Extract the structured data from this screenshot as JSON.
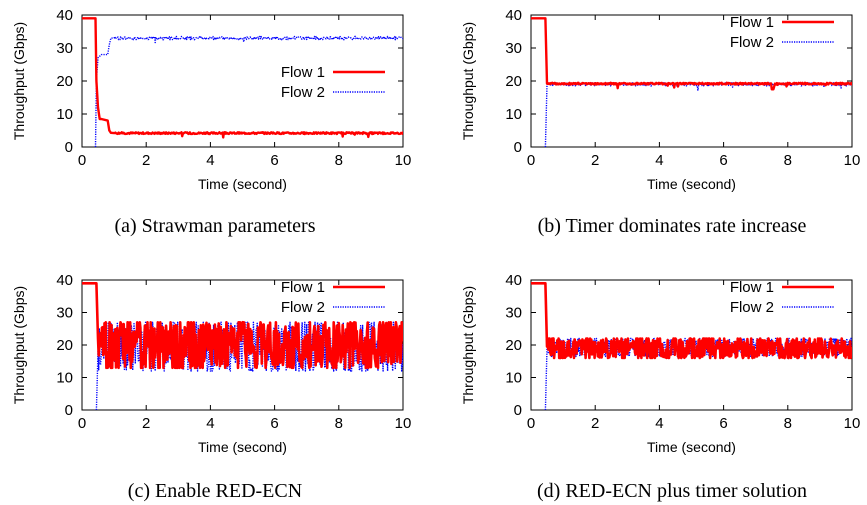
{
  "chart_data": [
    {
      "type": "line",
      "caption": "(a) Strawman parameters",
      "xlabel": "Time (second)",
      "ylabel": "Throughput (Gbps)",
      "xlim": [
        0,
        10
      ],
      "ylim": [
        0,
        40
      ],
      "xticks": [
        "0",
        "2",
        "4",
        "6",
        "8",
        "10"
      ],
      "yticks": [
        "0",
        "10",
        "20",
        "30",
        "40"
      ],
      "legend_position": "center-right",
      "series": [
        {
          "name": "Flow 1",
          "color": "#ff0000",
          "style": "solid",
          "x": [
            0,
            0.42,
            0.45,
            0.5,
            0.55,
            0.6,
            0.8,
            0.85,
            0.9,
            1.0,
            10
          ],
          "y": [
            39,
            39,
            20,
            12,
            8.5,
            8.5,
            8.0,
            5.0,
            4.3,
            4.2,
            4.2
          ]
        },
        {
          "name": "Flow 2",
          "color": "#0000ff",
          "style": "dotted",
          "x": [
            0.42,
            0.45,
            0.5,
            0.6,
            0.8,
            0.85,
            0.9,
            1.0,
            10
          ],
          "y": [
            0,
            20,
            27,
            28,
            28,
            31,
            33,
            33,
            33
          ]
        }
      ]
    },
    {
      "type": "line",
      "caption": "(b) Timer dominates rate increase",
      "xlabel": "Time (second)",
      "ylabel": "Throughput (Gbps)",
      "xlim": [
        0,
        10
      ],
      "ylim": [
        0,
        40
      ],
      "xticks": [
        "0",
        "2",
        "4",
        "6",
        "8",
        "10"
      ],
      "yticks": [
        "0",
        "10",
        "20",
        "30",
        "40"
      ],
      "legend_position": "top-right",
      "series": [
        {
          "name": "Flow 1",
          "color": "#ff0000",
          "style": "solid",
          "x": [
            0,
            0.45,
            0.5,
            7.48,
            7.5,
            7.55,
            7.6,
            10
          ],
          "y": [
            39,
            39,
            19.2,
            19.2,
            17.5,
            17.5,
            19.2,
            19.2
          ]
        },
        {
          "name": "Flow 2",
          "color": "#0000ff",
          "style": "dotted",
          "x": [
            0.45,
            0.5,
            10
          ],
          "y": [
            0,
            19,
            19
          ]
        }
      ]
    },
    {
      "type": "line",
      "caption": "(c) Enable RED-ECN",
      "xlabel": "Time (second)",
      "ylabel": "Throughput (Gbps)",
      "xlim": [
        0,
        10
      ],
      "ylim": [
        0,
        40
      ],
      "xticks": [
        "0",
        "2",
        "4",
        "6",
        "8",
        "10"
      ],
      "yticks": [
        "0",
        "10",
        "20",
        "30",
        "40"
      ],
      "legend_position": "top-right",
      "series": [
        {
          "name": "Flow 1",
          "color": "#ff0000",
          "style": "solid",
          "x": [
            0,
            0.45,
            0.5,
            10
          ],
          "y": [
            39,
            39,
            22,
            22
          ],
          "oscillation_range": [
            13,
            27
          ]
        },
        {
          "name": "Flow 2",
          "color": "#0000ff",
          "style": "dotted",
          "x": [
            0.45,
            0.5,
            10
          ],
          "y": [
            0,
            18,
            18
          ],
          "oscillation_range": [
            12,
            27
          ]
        }
      ]
    },
    {
      "type": "line",
      "caption": "(d) RED-ECN plus timer solution",
      "xlabel": "Time (second)",
      "ylabel": "Throughput (Gbps)",
      "xlim": [
        0,
        10
      ],
      "ylim": [
        0,
        40
      ],
      "xticks": [
        "0",
        "2",
        "4",
        "6",
        "8",
        "10"
      ],
      "yticks": [
        "0",
        "10",
        "20",
        "30",
        "40"
      ],
      "legend_position": "top-right",
      "series": [
        {
          "name": "Flow 1",
          "color": "#ff0000",
          "style": "solid",
          "x": [
            0,
            0.45,
            0.5,
            10
          ],
          "y": [
            39,
            39,
            19.5,
            19.5
          ],
          "oscillation_range": [
            16,
            22
          ]
        },
        {
          "name": "Flow 2",
          "color": "#0000ff",
          "style": "dotted",
          "x": [
            0.45,
            0.5,
            10
          ],
          "y": [
            0,
            19,
            19
          ],
          "oscillation_range": [
            16.5,
            22
          ]
        }
      ]
    }
  ]
}
